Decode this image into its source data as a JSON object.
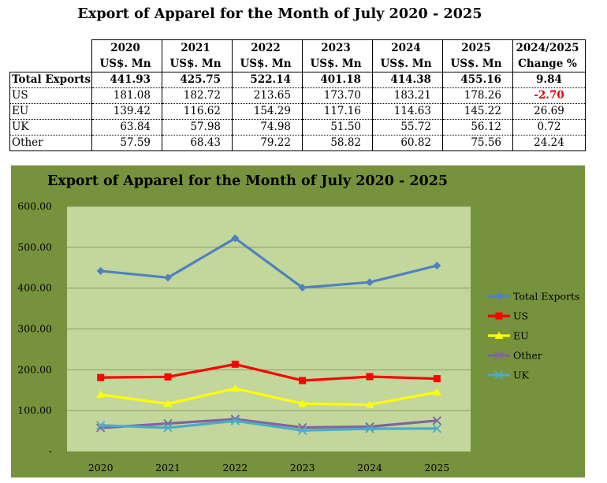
{
  "title": "Export of Apparel for the Month of July 2020 - 2025",
  "table": {
    "header_years": [
      "2020",
      "2021",
      "2022",
      "2023",
      "2024",
      "2025",
      "2024/2025"
    ],
    "header_units": [
      "US$. Mn",
      "US$. Mn",
      "US$. Mn",
      "US$. Mn",
      "US$. Mn",
      "US$. Mn",
      "Change %"
    ],
    "rows": [
      {
        "label": "Total Exports",
        "values": [
          "441.93",
          "425.75",
          "522.14",
          "401.18",
          "414.38",
          "455.16"
        ],
        "change": "9.84"
      },
      {
        "label": "US",
        "values": [
          "181.08",
          "182.72",
          "213.65",
          "173.70",
          "183.21",
          "178.26"
        ],
        "change": "-2.70"
      },
      {
        "label": "EU",
        "values": [
          "139.42",
          "116.62",
          "154.29",
          "117.16",
          "114.63",
          "145.22"
        ],
        "change": "26.69"
      },
      {
        "label": "UK",
        "values": [
          "63.84",
          "57.98",
          "74.98",
          "51.50",
          "55.72",
          "56.12"
        ],
        "change": "0.72"
      },
      {
        "label": "Other",
        "values": [
          "57.59",
          "68.43",
          "79.22",
          "58.82",
          "60.82",
          "75.56"
        ],
        "change": "24.24"
      }
    ]
  },
  "chart_data": {
    "type": "line",
    "title": "Export of Apparel for the Month of July 2020 - 2025",
    "categories": [
      "2020",
      "2021",
      "2022",
      "2023",
      "2024",
      "2025"
    ],
    "ylim": [
      0,
      600
    ],
    "y_ticks": [
      "-",
      "100.00",
      "200.00",
      "300.00",
      "400.00",
      "500.00",
      "600.00"
    ],
    "xlabel": "",
    "ylabel": "",
    "grid": true,
    "legend_position": "right",
    "series": [
      {
        "name": "Total Exports",
        "color": "#4f81bd",
        "marker": "diamond",
        "values": [
          441.93,
          425.75,
          522.14,
          401.18,
          414.38,
          455.16
        ]
      },
      {
        "name": "US",
        "color": "#ff0000",
        "marker": "square",
        "values": [
          181.08,
          182.72,
          213.65,
          173.7,
          183.21,
          178.26
        ]
      },
      {
        "name": "EU",
        "color": "#ffff00",
        "marker": "triangle",
        "values": [
          139.42,
          116.62,
          154.29,
          117.16,
          114.63,
          145.22
        ]
      },
      {
        "name": "Other",
        "color": "#8064a2",
        "marker": "x",
        "values": [
          57.59,
          68.43,
          79.22,
          58.82,
          60.82,
          75.56
        ]
      },
      {
        "name": "UK",
        "color": "#4bacc6",
        "marker": "x",
        "values": [
          63.84,
          57.98,
          74.98,
          51.5,
          55.72,
          56.12
        ]
      }
    ],
    "colors": {
      "chart_background": "#77923c",
      "plot_background": "#c3d69b",
      "gridline": "#8a9a6a"
    }
  }
}
